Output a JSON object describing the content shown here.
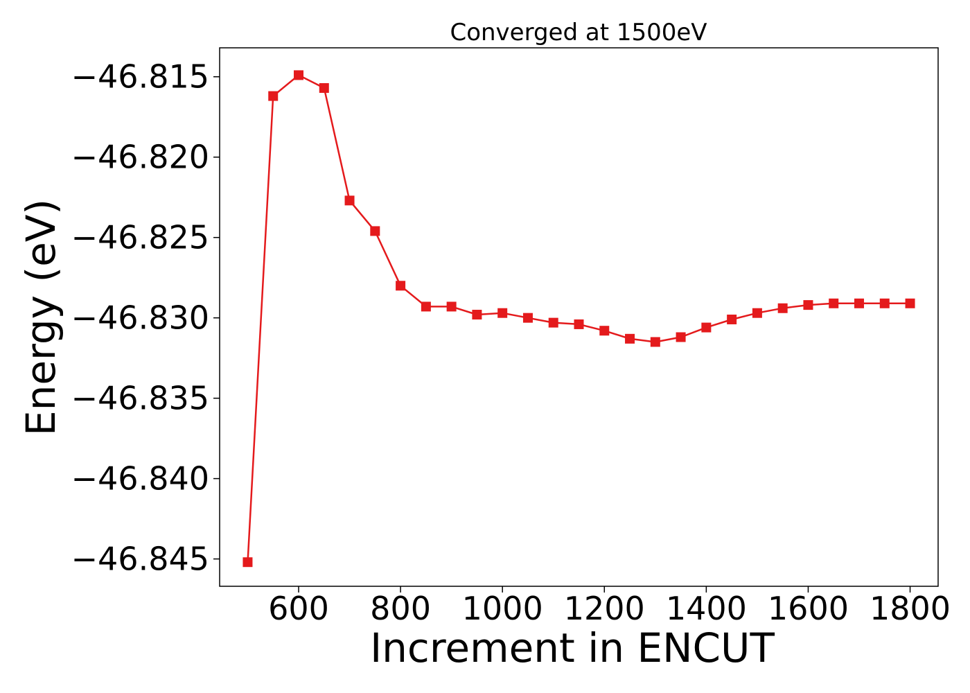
{
  "chart_data": {
    "type": "line",
    "title": "Converged at 1500eV",
    "xlabel": "Increment in ENCUT",
    "ylabel": "Energy (eV)",
    "xlim": [
      445,
      1855
    ],
    "ylim": [
      -46.8467,
      -46.8132
    ],
    "x_ticks": [
      600,
      800,
      1000,
      1200,
      1400,
      1600,
      1800
    ],
    "x_tick_labels": [
      "600",
      "800",
      "1000",
      "1200",
      "1400",
      "1600",
      "1800"
    ],
    "y_ticks": [
      -46.815,
      -46.82,
      -46.825,
      -46.83,
      -46.835,
      -46.84,
      -46.845
    ],
    "y_tick_labels": [
      "−46.815",
      "−46.820",
      "−46.825",
      "−46.830",
      "−46.835",
      "−46.840",
      "−46.845"
    ],
    "grid": false,
    "series": [
      {
        "color": "#e41a1c",
        "marker": "square",
        "x": [
          500,
          550,
          600,
          650,
          700,
          750,
          800,
          850,
          900,
          950,
          1000,
          1050,
          1100,
          1150,
          1200,
          1250,
          1300,
          1350,
          1400,
          1450,
          1500,
          1550,
          1600,
          1650,
          1700,
          1750,
          1800
        ],
        "y": [
          -46.8452,
          -46.8162,
          -46.8149,
          -46.8157,
          -46.8227,
          -46.8246,
          -46.828,
          -46.8293,
          -46.8293,
          -46.8298,
          -46.8297,
          -46.83,
          -46.8303,
          -46.8304,
          -46.8308,
          -46.8313,
          -46.8315,
          -46.8312,
          -46.8306,
          -46.8301,
          -46.8297,
          -46.8294,
          -46.8292,
          -46.8291,
          -46.8291,
          -46.8291,
          -46.8291
        ]
      }
    ]
  }
}
